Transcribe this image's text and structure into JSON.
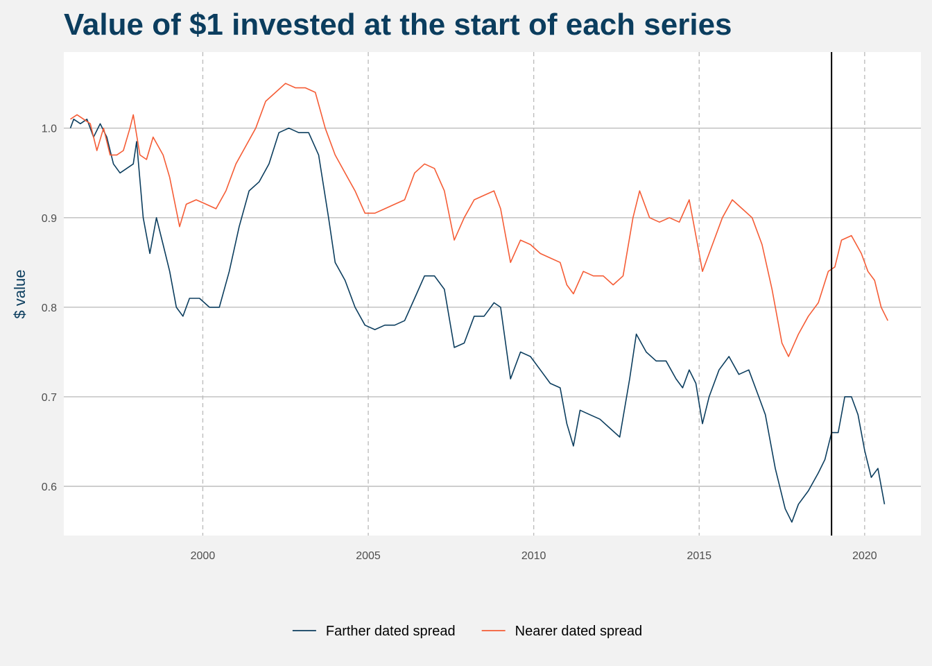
{
  "chart_data": {
    "type": "line",
    "title": "Value of $1 invested at the start of each series",
    "xlabel": "",
    "ylabel": "$ value",
    "xlim": [
      1995.8,
      2021.7
    ],
    "ylim": [
      0.545,
      1.085
    ],
    "x_ticks": [
      2000,
      2005,
      2010,
      2015,
      2020
    ],
    "y_ticks": [
      0.6,
      0.7,
      0.8,
      0.9,
      1.0
    ],
    "x_tick_labels": [
      "2000",
      "2005",
      "2010",
      "2015",
      "2020"
    ],
    "y_tick_labels": [
      "0.6",
      "0.7",
      "0.8",
      "0.9",
      "1.0"
    ],
    "grid": true,
    "vertical_marker_x": 2019.0,
    "legend_position": "bottom",
    "colors": {
      "background": "#f2f2f2",
      "panel": "#ffffff",
      "title": "#0b3d5e",
      "grid": "#bdbdbd",
      "marker": "#000000"
    },
    "series": [
      {
        "name": "Farther dated spread",
        "color": "#0b3d5e",
        "points": [
          [
            1996.0,
            1.0
          ],
          [
            1996.1,
            1.01
          ],
          [
            1996.3,
            1.005
          ],
          [
            1996.5,
            1.01
          ],
          [
            1996.7,
            0.99
          ],
          [
            1996.9,
            1.005
          ],
          [
            1997.1,
            0.99
          ],
          [
            1997.3,
            0.96
          ],
          [
            1997.5,
            0.95
          ],
          [
            1997.7,
            0.955
          ],
          [
            1997.9,
            0.96
          ],
          [
            1998.0,
            0.985
          ],
          [
            1998.2,
            0.9
          ],
          [
            1998.4,
            0.86
          ],
          [
            1998.6,
            0.9
          ],
          [
            1998.8,
            0.87
          ],
          [
            1999.0,
            0.84
          ],
          [
            1999.2,
            0.8
          ],
          [
            1999.4,
            0.79
          ],
          [
            1999.6,
            0.81
          ],
          [
            1999.9,
            0.81
          ],
          [
            2000.2,
            0.8
          ],
          [
            2000.5,
            0.8
          ],
          [
            2000.8,
            0.84
          ],
          [
            2001.1,
            0.89
          ],
          [
            2001.4,
            0.93
          ],
          [
            2001.7,
            0.94
          ],
          [
            2002.0,
            0.96
          ],
          [
            2002.3,
            0.995
          ],
          [
            2002.6,
            1.0
          ],
          [
            2002.9,
            0.995
          ],
          [
            2003.2,
            0.995
          ],
          [
            2003.5,
            0.97
          ],
          [
            2003.8,
            0.9
          ],
          [
            2004.0,
            0.85
          ],
          [
            2004.3,
            0.83
          ],
          [
            2004.6,
            0.8
          ],
          [
            2004.9,
            0.78
          ],
          [
            2005.2,
            0.775
          ],
          [
            2005.5,
            0.78
          ],
          [
            2005.8,
            0.78
          ],
          [
            2006.1,
            0.785
          ],
          [
            2006.4,
            0.81
          ],
          [
            2006.7,
            0.835
          ],
          [
            2007.0,
            0.835
          ],
          [
            2007.3,
            0.82
          ],
          [
            2007.6,
            0.755
          ],
          [
            2007.9,
            0.76
          ],
          [
            2008.2,
            0.79
          ],
          [
            2008.5,
            0.79
          ],
          [
            2008.8,
            0.805
          ],
          [
            2009.0,
            0.8
          ],
          [
            2009.3,
            0.72
          ],
          [
            2009.6,
            0.75
          ],
          [
            2009.9,
            0.745
          ],
          [
            2010.2,
            0.73
          ],
          [
            2010.5,
            0.715
          ],
          [
            2010.8,
            0.71
          ],
          [
            2011.0,
            0.67
          ],
          [
            2011.2,
            0.645
          ],
          [
            2011.4,
            0.685
          ],
          [
            2011.7,
            0.68
          ],
          [
            2012.0,
            0.675
          ],
          [
            2012.3,
            0.665
          ],
          [
            2012.6,
            0.655
          ],
          [
            2012.9,
            0.72
          ],
          [
            2013.1,
            0.77
          ],
          [
            2013.4,
            0.75
          ],
          [
            2013.7,
            0.74
          ],
          [
            2014.0,
            0.74
          ],
          [
            2014.3,
            0.72
          ],
          [
            2014.5,
            0.71
          ],
          [
            2014.7,
            0.73
          ],
          [
            2014.9,
            0.715
          ],
          [
            2015.1,
            0.67
          ],
          [
            2015.3,
            0.7
          ],
          [
            2015.6,
            0.73
          ],
          [
            2015.9,
            0.745
          ],
          [
            2016.2,
            0.725
          ],
          [
            2016.5,
            0.73
          ],
          [
            2016.8,
            0.7
          ],
          [
            2017.0,
            0.68
          ],
          [
            2017.3,
            0.62
          ],
          [
            2017.6,
            0.575
          ],
          [
            2017.8,
            0.56
          ],
          [
            2018.0,
            0.58
          ],
          [
            2018.3,
            0.595
          ],
          [
            2018.6,
            0.615
          ],
          [
            2018.8,
            0.63
          ],
          [
            2019.0,
            0.66
          ],
          [
            2019.2,
            0.66
          ],
          [
            2019.4,
            0.7
          ],
          [
            2019.6,
            0.7
          ],
          [
            2019.8,
            0.68
          ],
          [
            2020.0,
            0.64
          ],
          [
            2020.2,
            0.61
          ],
          [
            2020.4,
            0.62
          ],
          [
            2020.6,
            0.58
          ]
        ]
      },
      {
        "name": "Nearer dated spread",
        "color": "#f55c35",
        "points": [
          [
            1996.0,
            1.01
          ],
          [
            1996.2,
            1.015
          ],
          [
            1996.4,
            1.01
          ],
          [
            1996.6,
            1.005
          ],
          [
            1996.8,
            0.975
          ],
          [
            1997.0,
            1.0
          ],
          [
            1997.2,
            0.97
          ],
          [
            1997.4,
            0.97
          ],
          [
            1997.6,
            0.975
          ],
          [
            1997.8,
            1.0
          ],
          [
            1997.9,
            1.015
          ],
          [
            1998.1,
            0.97
          ],
          [
            1998.3,
            0.965
          ],
          [
            1998.5,
            0.99
          ],
          [
            1998.8,
            0.97
          ],
          [
            1999.0,
            0.945
          ],
          [
            1999.3,
            0.89
          ],
          [
            1999.5,
            0.915
          ],
          [
            1999.8,
            0.92
          ],
          [
            2000.1,
            0.915
          ],
          [
            2000.4,
            0.91
          ],
          [
            2000.7,
            0.93
          ],
          [
            2001.0,
            0.96
          ],
          [
            2001.3,
            0.98
          ],
          [
            2001.6,
            1.0
          ],
          [
            2001.9,
            1.03
          ],
          [
            2002.2,
            1.04
          ],
          [
            2002.5,
            1.05
          ],
          [
            2002.8,
            1.045
          ],
          [
            2003.1,
            1.045
          ],
          [
            2003.4,
            1.04
          ],
          [
            2003.7,
            1.0
          ],
          [
            2004.0,
            0.97
          ],
          [
            2004.3,
            0.95
          ],
          [
            2004.6,
            0.93
          ],
          [
            2004.9,
            0.905
          ],
          [
            2005.2,
            0.905
          ],
          [
            2005.5,
            0.91
          ],
          [
            2005.8,
            0.915
          ],
          [
            2006.1,
            0.92
          ],
          [
            2006.4,
            0.95
          ],
          [
            2006.7,
            0.96
          ],
          [
            2007.0,
            0.955
          ],
          [
            2007.3,
            0.93
          ],
          [
            2007.6,
            0.875
          ],
          [
            2007.9,
            0.9
          ],
          [
            2008.2,
            0.92
          ],
          [
            2008.5,
            0.925
          ],
          [
            2008.8,
            0.93
          ],
          [
            2009.0,
            0.91
          ],
          [
            2009.3,
            0.85
          ],
          [
            2009.6,
            0.875
          ],
          [
            2009.9,
            0.87
          ],
          [
            2010.2,
            0.86
          ],
          [
            2010.5,
            0.855
          ],
          [
            2010.8,
            0.85
          ],
          [
            2011.0,
            0.825
          ],
          [
            2011.2,
            0.815
          ],
          [
            2011.5,
            0.84
          ],
          [
            2011.8,
            0.835
          ],
          [
            2012.1,
            0.835
          ],
          [
            2012.4,
            0.825
          ],
          [
            2012.7,
            0.835
          ],
          [
            2013.0,
            0.9
          ],
          [
            2013.2,
            0.93
          ],
          [
            2013.5,
            0.9
          ],
          [
            2013.8,
            0.895
          ],
          [
            2014.1,
            0.9
          ],
          [
            2014.4,
            0.895
          ],
          [
            2014.7,
            0.92
          ],
          [
            2014.9,
            0.88
          ],
          [
            2015.1,
            0.84
          ],
          [
            2015.4,
            0.87
          ],
          [
            2015.7,
            0.9
          ],
          [
            2016.0,
            0.92
          ],
          [
            2016.3,
            0.91
          ],
          [
            2016.6,
            0.9
          ],
          [
            2016.9,
            0.87
          ],
          [
            2017.2,
            0.82
          ],
          [
            2017.5,
            0.76
          ],
          [
            2017.7,
            0.745
          ],
          [
            2018.0,
            0.77
          ],
          [
            2018.3,
            0.79
          ],
          [
            2018.6,
            0.805
          ],
          [
            2018.9,
            0.84
          ],
          [
            2019.1,
            0.845
          ],
          [
            2019.3,
            0.875
          ],
          [
            2019.6,
            0.88
          ],
          [
            2019.9,
            0.86
          ],
          [
            2020.1,
            0.84
          ],
          [
            2020.3,
            0.83
          ],
          [
            2020.5,
            0.8
          ],
          [
            2020.7,
            0.785
          ]
        ]
      }
    ]
  }
}
